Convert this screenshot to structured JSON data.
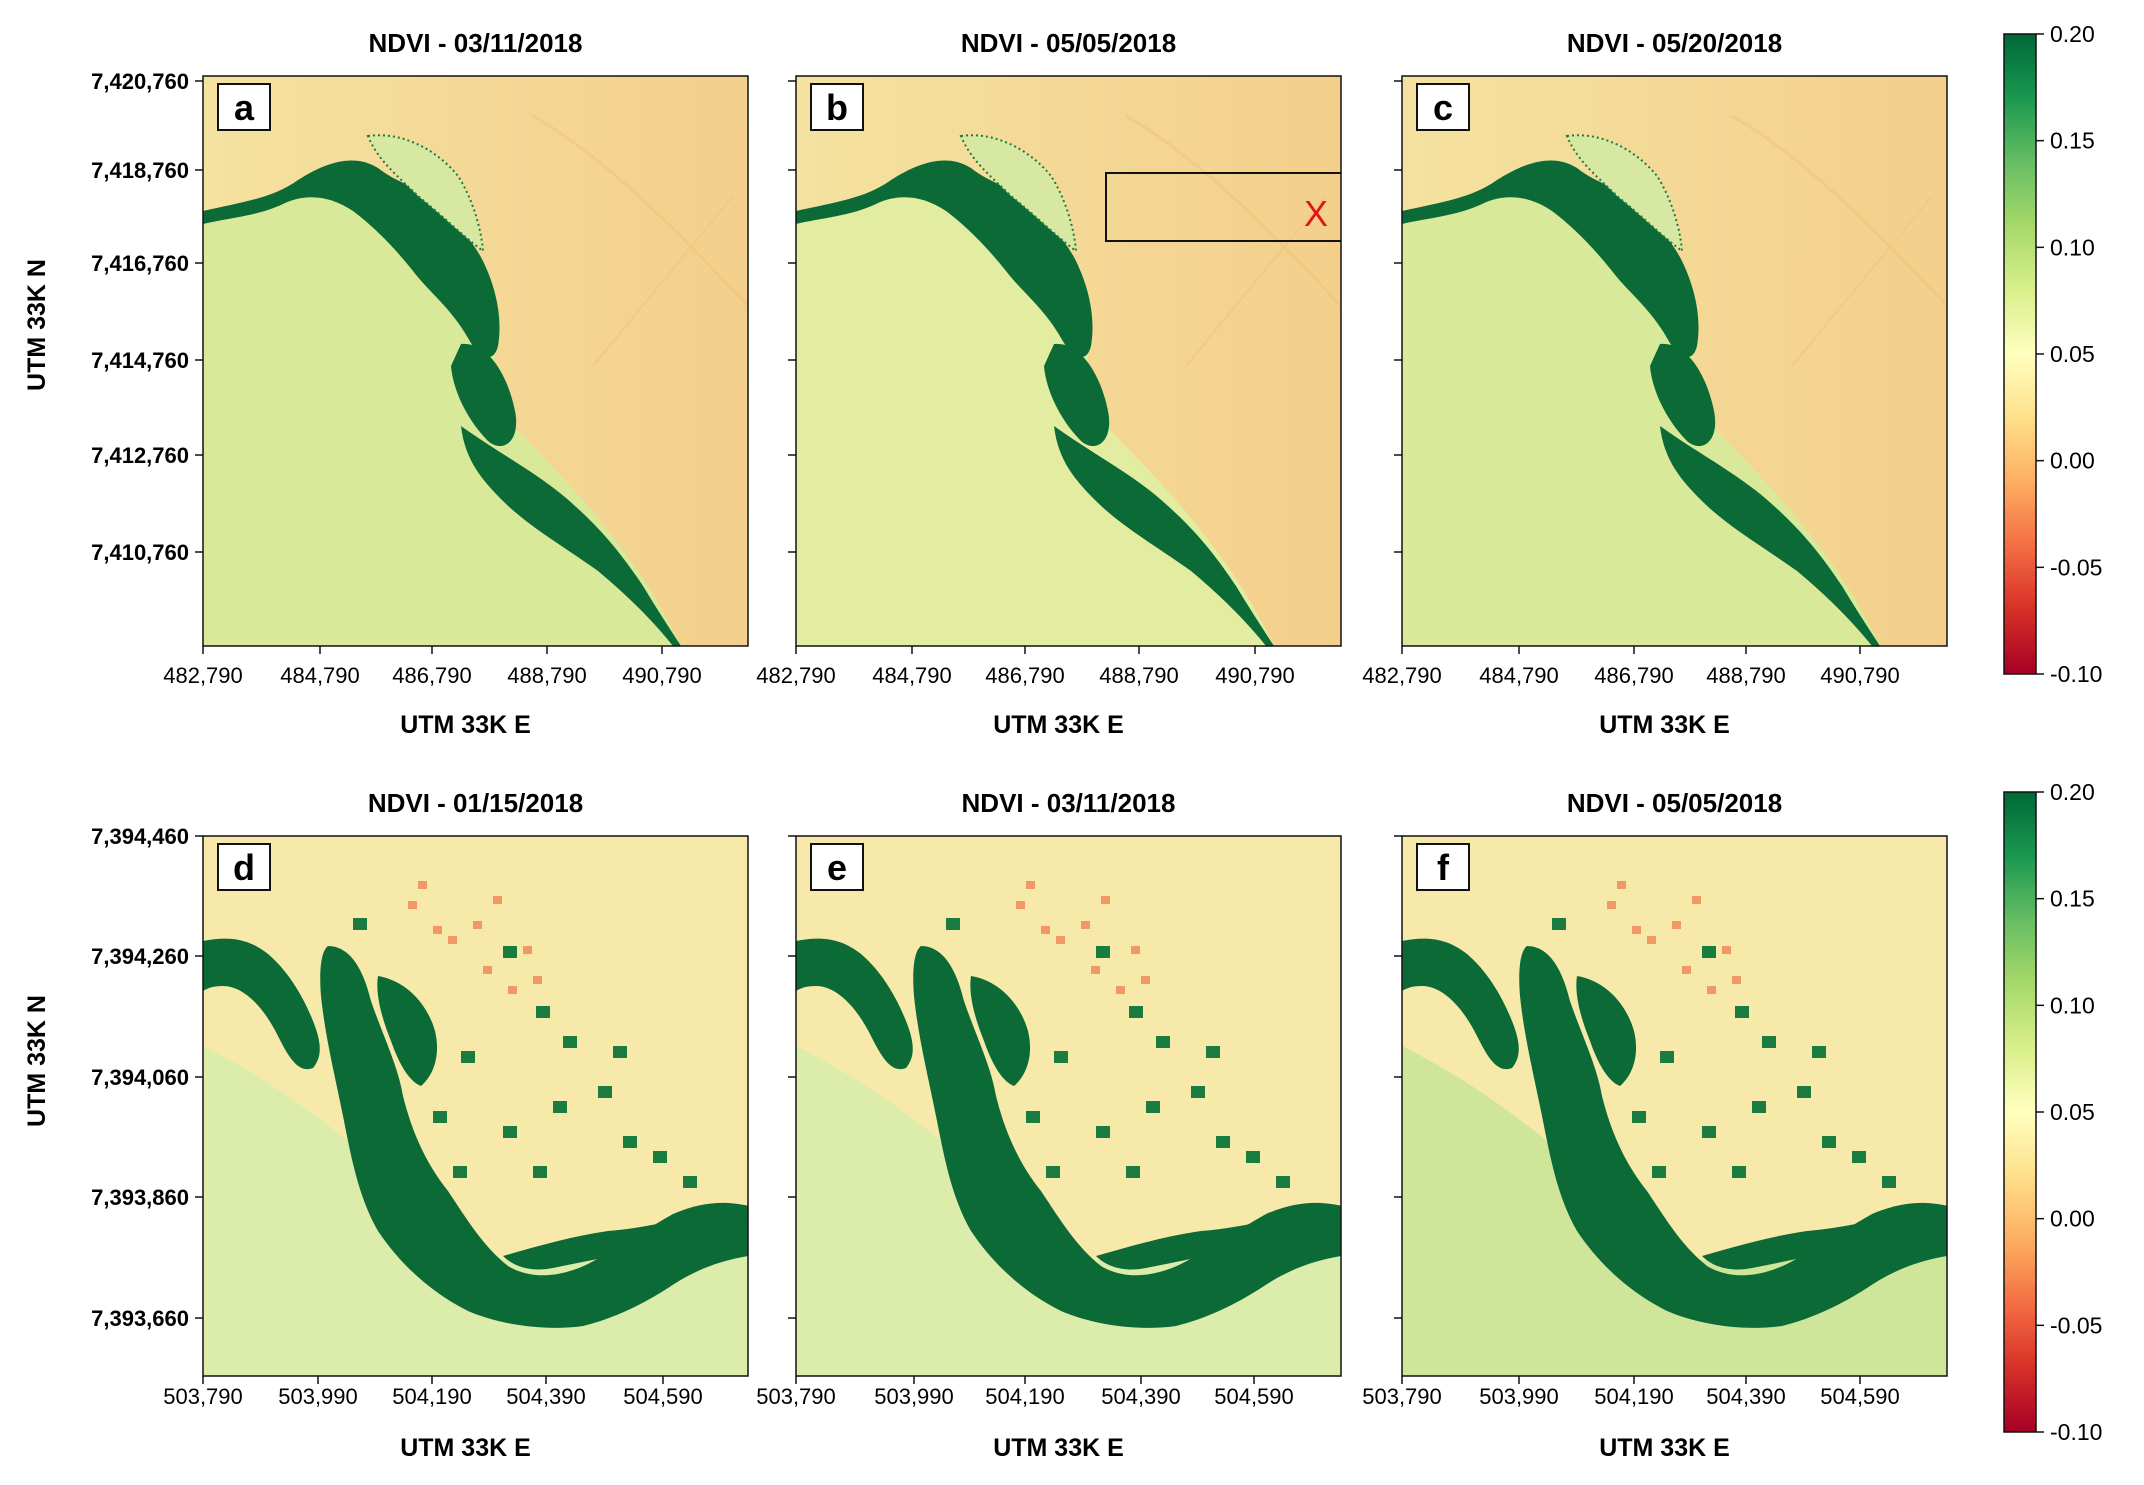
{
  "figure": {
    "colorbar": {
      "ticks": [
        "0.20",
        "0.15",
        "0.10",
        "0.05",
        "0.00",
        "-0.05",
        "-0.10"
      ],
      "vmin": -0.1,
      "vmax": 0.2,
      "colors": [
        "#a50026",
        "#d73027",
        "#f46d43",
        "#fdae61",
        "#fee08b",
        "#ffffbf",
        "#d9ef8b",
        "#a6d96a",
        "#66bd63",
        "#1a9850",
        "#006837"
      ]
    },
    "rows": [
      {
        "ylabel": "UTM 33K N",
        "xlabel": "UTM 33K E",
        "yticks": [
          "7,420,760",
          "7,418,760",
          "7,416,760",
          "7,414,760",
          "7,412,760",
          "7,410,760"
        ],
        "xticks": [
          "482,790",
          "484,790",
          "486,790",
          "488,790",
          "490,790"
        ],
        "panels": [
          {
            "letter": "a",
            "title": "NDVI - 03/11/2018"
          },
          {
            "letter": "b",
            "title": "NDVI - 05/05/2018",
            "marker": "X"
          },
          {
            "letter": "c",
            "title": "NDVI - 05/20/2018"
          }
        ]
      },
      {
        "ylabel": "UTM 33K N",
        "xlabel": "UTM 33K E",
        "yticks": [
          "7,394,460",
          "7,394,260",
          "7,394,060",
          "7,393,860",
          "7,393,660"
        ],
        "xticks": [
          "503,790",
          "503,990",
          "504,190",
          "504,390",
          "504,590"
        ],
        "panels": [
          {
            "letter": "d",
            "title": "NDVI - 01/15/2018"
          },
          {
            "letter": "e",
            "title": "NDVI - 03/11/2018"
          },
          {
            "letter": "f",
            "title": "NDVI - 05/05/2018"
          }
        ]
      }
    ]
  }
}
